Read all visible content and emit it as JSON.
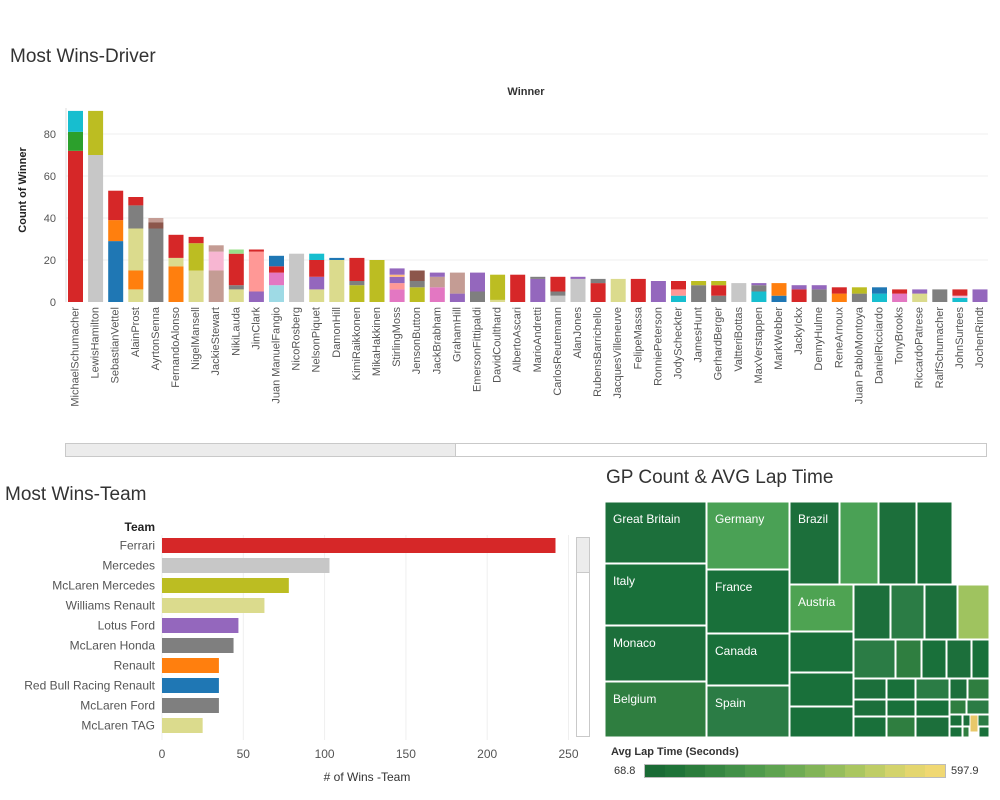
{
  "dashboard": {
    "driver_title": "Most Wins-Driver",
    "team_title": "Most Wins-Team",
    "treemap_title": "GP Count & AVG Lap Time"
  },
  "chart_data": [
    {
      "type": "bar",
      "subtype": "stacked",
      "title": "Most Wins-Driver",
      "column_header": "Winner",
      "ylabel": "Count of Winner",
      "yticks": [
        0,
        20,
        40,
        60,
        80
      ],
      "ylim": [
        0,
        95
      ],
      "grid": true,
      "palette": {
        "red": "#d62728",
        "green": "#2ca02c",
        "cyan": "#17becf",
        "gray": "#c7c7c7",
        "orange": "#ff7f0e",
        "blue": "#1f77b4",
        "khaki": "#dbdb8d",
        "darkgray": "#7f7f7f",
        "olive": "#bcbd22",
        "mauve": "#c49c94",
        "pink": "#f7b6d2",
        "purple": "#9467bd",
        "salmon": "#ff9896",
        "lightblue": "#9edae5",
        "magenta": "#e377c2",
        "brown": "#8c564b",
        "darkred": "#7f2b2b",
        "lightorange": "#ffbb78"
      },
      "categories": [
        "MichaelSchumacher",
        "LewisHamilton",
        "SebastianVettel",
        "AlainProst",
        "AyrtonSenna",
        "FernandoAlonso",
        "NigelMansell",
        "JackieStewart",
        "NikiLauda",
        "JimClark",
        "Juan ManuelFangio",
        "NicoRosberg",
        "NelsonPiquet",
        "DamonHill",
        "KimiRaikkonen",
        "MikaHakkinen",
        "StirlingMoss",
        "JensonButton",
        "JackBrabham",
        "GrahamHill",
        "EmersonFittipaldi",
        "DavidCoulthard",
        "AlbertoAscari",
        "MarioAndretti",
        "CarlosReutemann",
        "AlanJones",
        "RubensBarrichello",
        "JacquesVilleneuve",
        "FelipeMassa",
        "RonniePeterson",
        "JodyScheckter",
        "JamesHunt",
        "GerhardBerger",
        "ValtteriBottas",
        "MaxVerstappen",
        "MarkWebber",
        "JackyIckx",
        "DennyHulme",
        "ReneArnoux",
        "Juan PabloMontoya",
        "DanielRicciardo",
        "TonyBrooks",
        "RiccardoPatrese",
        "RalfSchumacher",
        "JohnSurtees",
        "JochenRindt"
      ],
      "stacks": [
        [
          [
            "red",
            72
          ],
          [
            "green",
            9
          ],
          [
            "cyan",
            10
          ]
        ],
        [
          [
            "gray",
            70
          ],
          [
            "olive",
            21
          ]
        ],
        [
          [
            "blue",
            29
          ],
          [
            "orange",
            10
          ],
          [
            "red",
            14
          ]
        ],
        [
          [
            "khaki",
            6
          ],
          [
            "orange",
            9
          ],
          [
            "khaki",
            20
          ],
          [
            "darkgray",
            11
          ],
          [
            "red",
            4
          ]
        ],
        [
          [
            "darkgray",
            35
          ],
          [
            "brown",
            3
          ],
          [
            "mauve",
            2
          ]
        ],
        [
          [
            "orange",
            17
          ],
          [
            "khaki",
            4
          ],
          [
            "red",
            11
          ]
        ],
        [
          [
            "khaki",
            15
          ],
          [
            "olive",
            13
          ],
          [
            "red",
            3
          ]
        ],
        [
          [
            "mauve",
            15
          ],
          [
            "pink",
            9
          ],
          [
            "mauve",
            3
          ]
        ],
        [
          [
            "khaki",
            6
          ],
          [
            "darkgray",
            2
          ],
          [
            "red",
            15
          ],
          [
            "lightgreen",
            2
          ]
        ],
        [
          [
            "purple",
            5
          ],
          [
            "salmon",
            19
          ],
          [
            "red",
            1
          ]
        ],
        [
          [
            "lightblue",
            8
          ],
          [
            "magenta",
            6
          ],
          [
            "red",
            3
          ],
          [
            "blue",
            5
          ]
        ],
        [
          [
            "gray",
            23
          ]
        ],
        [
          [
            "khaki",
            6
          ],
          [
            "purple",
            6
          ],
          [
            "red",
            8
          ],
          [
            "cyan",
            3
          ]
        ],
        [
          [
            "khaki",
            20
          ],
          [
            "blue",
            1
          ]
        ],
        [
          [
            "olive",
            8
          ],
          [
            "darkgray",
            2
          ],
          [
            "red",
            11
          ]
        ],
        [
          [
            "olive",
            20
          ]
        ],
        [
          [
            "magenta",
            6
          ],
          [
            "salmon",
            3
          ],
          [
            "purple",
            3
          ],
          [
            "lightorange",
            1
          ],
          [
            "purple",
            3
          ]
        ],
        [
          [
            "olive",
            7
          ],
          [
            "darkgray",
            3
          ],
          [
            "brown",
            5
          ]
        ],
        [
          [
            "magenta",
            7
          ],
          [
            "mauve",
            5
          ],
          [
            "purple",
            2
          ]
        ],
        [
          [
            "purple",
            4
          ],
          [
            "mauve",
            10
          ]
        ],
        [
          [
            "darkgray",
            5
          ],
          [
            "purple",
            9
          ]
        ],
        [
          [
            "khaki",
            1
          ],
          [
            "olive",
            12
          ]
        ],
        [
          [
            "red",
            13
          ]
        ],
        [
          [
            "purple",
            11
          ],
          [
            "darkgray",
            1
          ]
        ],
        [
          [
            "gray",
            3
          ],
          [
            "darkgray",
            2
          ],
          [
            "red",
            7
          ]
        ],
        [
          [
            "gray",
            11
          ],
          [
            "purple",
            1
          ]
        ],
        [
          [
            "red",
            9
          ],
          [
            "darkgray",
            2
          ]
        ],
        [
          [
            "khaki",
            11
          ]
        ],
        [
          [
            "red",
            11
          ]
        ],
        [
          [
            "purple",
            10
          ]
        ],
        [
          [
            "cyan",
            3
          ],
          [
            "salmon",
            3
          ],
          [
            "red",
            4
          ]
        ],
        [
          [
            "darkgray",
            8
          ],
          [
            "olive",
            2
          ]
        ],
        [
          [
            "darkgray",
            3
          ],
          [
            "red",
            5
          ],
          [
            "olive",
            2
          ]
        ],
        [
          [
            "gray",
            9
          ]
        ],
        [
          [
            "cyan",
            5
          ],
          [
            "darkgray",
            3
          ],
          [
            "purple",
            1
          ]
        ],
        [
          [
            "blue",
            3
          ],
          [
            "orange",
            6
          ]
        ],
        [
          [
            "red",
            6
          ],
          [
            "purple",
            2
          ]
        ],
        [
          [
            "darkgray",
            6
          ],
          [
            "purple",
            2
          ]
        ],
        [
          [
            "orange",
            4
          ],
          [
            "red",
            3
          ]
        ],
        [
          [
            "darkgray",
            4
          ],
          [
            "olive",
            3
          ]
        ],
        [
          [
            "cyan",
            4
          ],
          [
            "blue",
            3
          ]
        ],
        [
          [
            "magenta",
            4
          ],
          [
            "red",
            2
          ]
        ],
        [
          [
            "khaki",
            4
          ],
          [
            "purple",
            2
          ]
        ],
        [
          [
            "darkgray",
            6
          ]
        ],
        [
          [
            "cyan",
            2
          ],
          [
            "pink",
            1
          ],
          [
            "red",
            3
          ]
        ],
        [
          [
            "purple",
            6
          ]
        ]
      ]
    },
    {
      "type": "bar",
      "orientation": "horizontal",
      "title": "Most Wins-Team",
      "row_header": "Team",
      "xlabel": "# of  Wins -Team",
      "xticks": [
        0,
        50,
        100,
        150,
        200,
        250
      ],
      "xlim": [
        0,
        260
      ],
      "categories": [
        "Ferrari",
        "Mercedes",
        "McLaren Mercedes",
        "Williams Renault",
        "Lotus Ford",
        "McLaren Honda",
        "Renault",
        "Red Bull Racing Renault",
        "McLaren Ford",
        "McLaren TAG"
      ],
      "values": [
        242,
        103,
        78,
        63,
        47,
        44,
        35,
        35,
        35,
        25
      ],
      "colors": [
        "#d62728",
        "#c7c7c7",
        "#bcbd22",
        "#dbdb8d",
        "#9467bd",
        "#7f7f7f",
        "#ff7f0e",
        "#1f77b4",
        "#7f7f7f",
        "#dbdb8d"
      ]
    },
    {
      "type": "treemap",
      "title": "GP Count & AVG Lap Time",
      "labeled_cells": [
        {
          "name": "Great Britain",
          "color": "#1c6f3b"
        },
        {
          "name": "Germany",
          "color": "#4aa155"
        },
        {
          "name": "Brazil",
          "color": "#1c6f3b"
        },
        {
          "name": "Italy",
          "color": "#19703a"
        },
        {
          "name": "France",
          "color": "#19703a"
        },
        {
          "name": "Austria",
          "color": "#4ea352"
        },
        {
          "name": "Monaco",
          "color": "#1c6f3b"
        },
        {
          "name": "Canada",
          "color": "#19703a"
        },
        {
          "name": "Belgium",
          "color": "#2f7e40"
        },
        {
          "name": "Spain",
          "color": "#2b7c45"
        }
      ],
      "legend": {
        "title": "Avg Lap Time (Seconds)",
        "min": "68.8",
        "max": "597.9",
        "colors": [
          "#1a6b35",
          "#1f7338",
          "#2b7c3c",
          "#368642",
          "#429048",
          "#4f9a4c",
          "#5ea350",
          "#6fab54",
          "#82b458",
          "#96bd5c",
          "#aac660",
          "#bfcd66",
          "#d3d36c",
          "#e4d66f",
          "#f0d873"
        ]
      }
    }
  ]
}
